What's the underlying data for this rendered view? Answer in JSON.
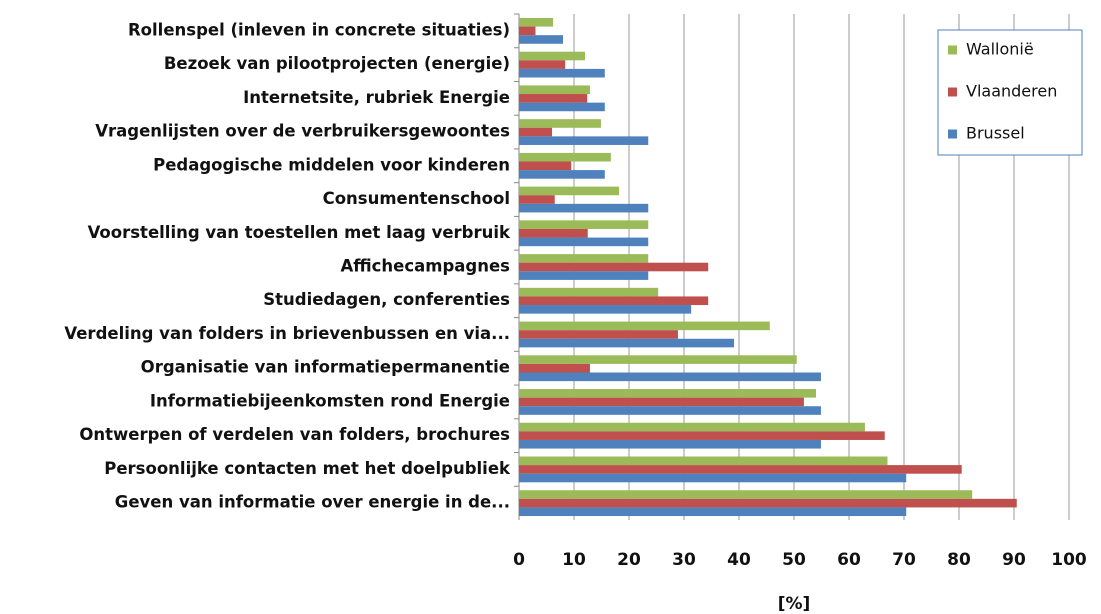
{
  "chart_data": {
    "type": "hbar",
    "xlabel": "[%]",
    "categories": [
      "Rollenspel (inleven in concrete situaties)",
      "Bezoek van pilootprojecten (energie)",
      "Internetsite, rubriek Energie",
      "Vragenlijsten over de verbruikersgewoontes",
      "Pedagogische middelen voor kinderen",
      "Consumentenschool",
      "Voorstelling van toestellen met laag verbruik",
      "Affichecampagnes",
      "Studiedagen, conferenties",
      "Verdeling van folders in brievenbussen en via...",
      "Organisatie van informatiepermanentie",
      "Informatiebijeenkomsten rond Energie",
      "Ontwerpen of verdelen van folders, brochures",
      "Persoonlijke contacten met het doelpubliek",
      "Geven van informatie over energie in de..."
    ],
    "series": [
      {
        "name": "Wallonië",
        "color": "#9bbb59",
        "values": [
          6.2,
          12,
          12.9,
          14.9,
          16.7,
          18.2,
          23.5,
          23.5,
          25.3,
          45.6,
          50.5,
          54,
          62.9,
          67,
          82.4
        ]
      },
      {
        "name": "Vlaanderen",
        "color": "#c0504d",
        "values": [
          3,
          8.4,
          12.4,
          6,
          9.5,
          6.5,
          12.5,
          34.4,
          34.4,
          28.9,
          12.9,
          51.8,
          66.5,
          80.5,
          90.5
        ]
      },
      {
        "name": "Brussel",
        "color": "#4f81bd",
        "values": [
          8,
          15.6,
          15.6,
          23.5,
          15.6,
          23.5,
          23.5,
          23.5,
          31.3,
          39.1,
          54.9,
          54.9,
          54.9,
          70.4,
          70.4
        ]
      }
    ],
    "xlim": [
      0,
      100
    ],
    "xticks": [
      0,
      10,
      20,
      30,
      40,
      50,
      60,
      70,
      80,
      90,
      100
    ],
    "grid": true,
    "legend": "upper right"
  }
}
